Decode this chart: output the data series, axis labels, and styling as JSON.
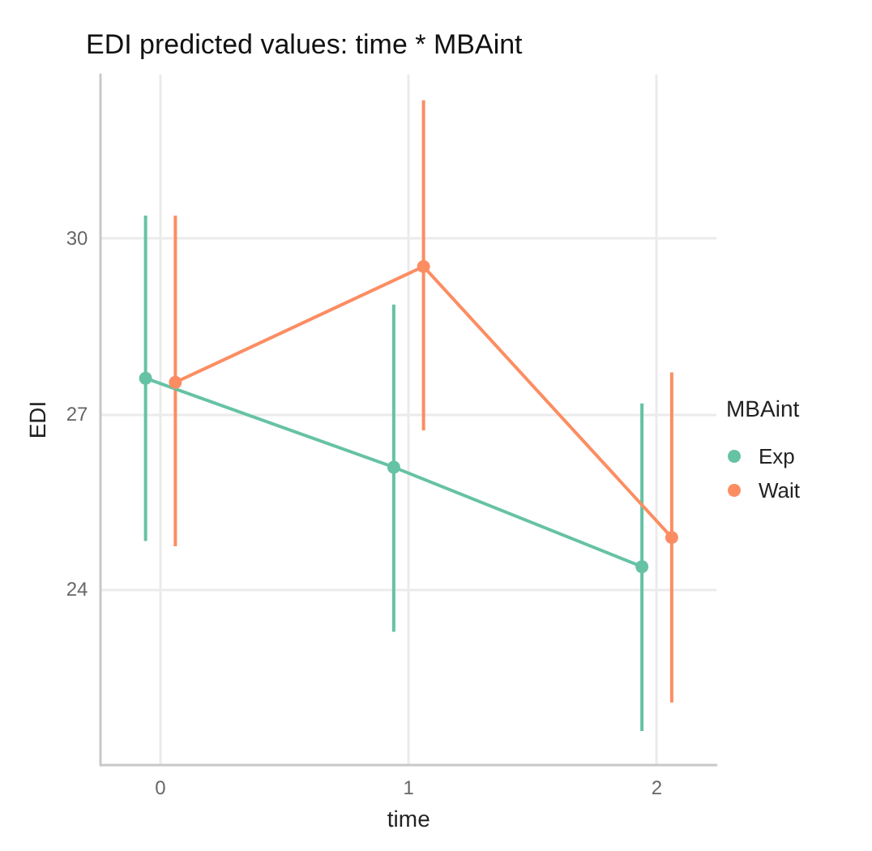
{
  "chart_data": {
    "type": "line",
    "title": "EDI predicted values: time * MBAint",
    "xlabel": "time",
    "ylabel": "EDI",
    "legend_title": "MBAint",
    "series": [
      {
        "name": "Exp",
        "color": "#66c2a5",
        "x": [
          -0.06,
          0.94,
          1.94
        ],
        "values": [
          27.61,
          26.09,
          24.39
        ],
        "errors": [
          [
            24.83,
            30.39
          ],
          [
            23.28,
            28.87
          ],
          [
            21.58,
            27.18
          ]
        ]
      },
      {
        "name": "Wait",
        "color": "#fc8d62",
        "x": [
          0.06,
          1.06,
          2.06
        ],
        "values": [
          27.54,
          29.52,
          24.89
        ],
        "errors": [
          [
            24.74,
            30.39
          ],
          [
            26.72,
            32.36
          ],
          [
            22.07,
            27.71
          ]
        ]
      }
    ],
    "xlim": [
      -0.24,
      2.24
    ],
    "xticks": [
      0,
      1,
      2
    ],
    "ylim": [
      21.0,
      32.8
    ],
    "yticks": [
      24,
      27,
      30
    ],
    "grid": true,
    "legend": "right",
    "marker": "circle",
    "line_style": "solid"
  }
}
